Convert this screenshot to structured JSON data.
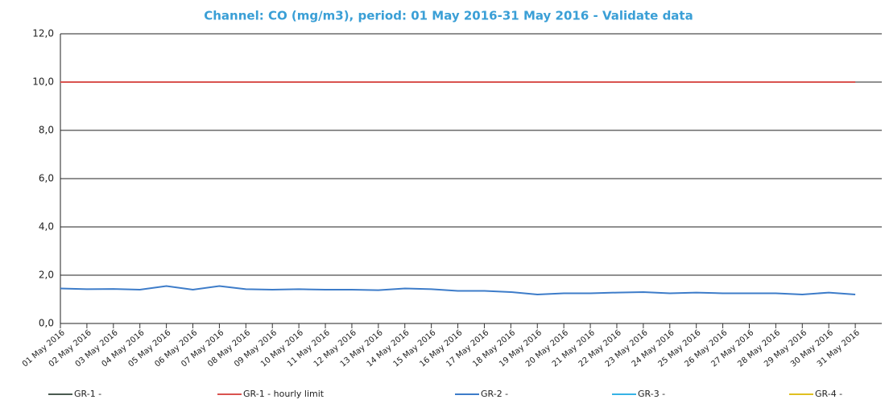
{
  "chart_data": {
    "type": "line",
    "title": "Channel: CO (mg/m3), period: 01 May 2016-31 May 2016 - Validate data",
    "categories": [
      "01 May 2016",
      "02 May 2016",
      "03 May 2016",
      "04 May 2016",
      "05 May 2016",
      "06 May 2016",
      "07 May 2016",
      "08 May 2016",
      "09 May 2016",
      "10 May 2016",
      "11 May 2016",
      "12 May 2016",
      "13 May 2016",
      "14 May 2016",
      "15 May 2016",
      "16 May 2016",
      "17 May 2016",
      "18 May 2016",
      "19 May 2016",
      "20 May 2016",
      "21 May 2016",
      "22 May 2016",
      "23 May 2016",
      "24 May 2016",
      "25 May 2016",
      "26 May 2016",
      "27 May 2016",
      "28 May 2016",
      "29 May 2016",
      "30 May 2016",
      "31 May 2016"
    ],
    "series": [
      {
        "name": "GR-1 -",
        "color": "#4a5a50",
        "values": [
          null,
          null,
          null,
          null,
          null,
          null,
          null,
          null,
          null,
          null,
          null,
          null,
          null,
          null,
          null,
          null,
          null,
          null,
          null,
          null,
          null,
          null,
          null,
          null,
          null,
          null,
          null,
          null,
          null,
          null,
          null
        ]
      },
      {
        "name": "GR-1 - hourly limit",
        "color": "#d9534f",
        "values": [
          10,
          10,
          10,
          10,
          10,
          10,
          10,
          10,
          10,
          10,
          10,
          10,
          10,
          10,
          10,
          10,
          10,
          10,
          10,
          10,
          10,
          10,
          10,
          10,
          10,
          10,
          10,
          10,
          10,
          10,
          10
        ]
      },
      {
        "name": "GR-2 -",
        "color": "#3d7cc9",
        "values": [
          1.45,
          1.42,
          1.43,
          1.4,
          1.55,
          1.4,
          1.55,
          1.42,
          1.4,
          1.42,
          1.4,
          1.4,
          1.38,
          1.45,
          1.42,
          1.35,
          1.35,
          1.3,
          1.2,
          1.25,
          1.25,
          1.28,
          1.3,
          1.25,
          1.28,
          1.25,
          1.25,
          1.25,
          1.2,
          1.28,
          1.2
        ]
      },
      {
        "name": "GR-3 -",
        "color": "#36b3e6",
        "values": [
          null,
          null,
          null,
          null,
          null,
          null,
          null,
          null,
          null,
          null,
          null,
          null,
          null,
          null,
          null,
          null,
          null,
          null,
          null,
          null,
          null,
          null,
          null,
          null,
          null,
          null,
          null,
          null,
          null,
          null,
          null
        ]
      },
      {
        "name": "GR-4 -",
        "color": "#e0c020",
        "values": [
          null,
          null,
          null,
          null,
          null,
          null,
          null,
          null,
          null,
          null,
          null,
          null,
          null,
          null,
          null,
          null,
          null,
          null,
          null,
          null,
          null,
          null,
          null,
          null,
          null,
          null,
          null,
          null,
          null,
          null,
          null
        ]
      }
    ],
    "ylim": [
      0,
      12
    ],
    "yticks": [
      {
        "value": 0,
        "label": "0,0"
      },
      {
        "value": 2,
        "label": "2,0"
      },
      {
        "value": 4,
        "label": "4,0"
      },
      {
        "value": 6,
        "label": "6,0"
      },
      {
        "value": 8,
        "label": "8,0"
      },
      {
        "value": 10,
        "label": "10,0"
      },
      {
        "value": 12,
        "label": "12,0"
      }
    ],
    "grid": true
  }
}
